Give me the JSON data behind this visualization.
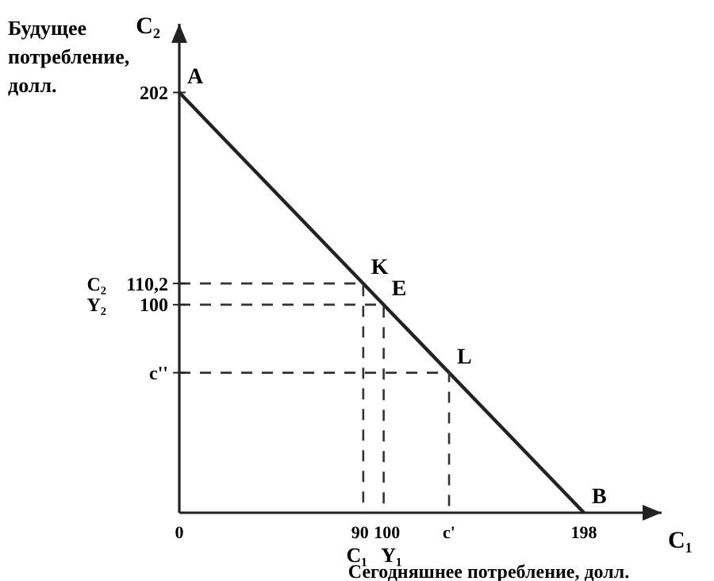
{
  "chart_data": {
    "type": "line",
    "xlabel": "Сегодняшнее потребление, долл.",
    "ylabel": "Будущее потребление, долл.",
    "xlim": [
      0,
      236
    ],
    "ylim": [
      0,
      235
    ],
    "xticks": [
      0,
      90,
      100,
      {
        "value": 132,
        "label": "c'"
      },
      198
    ],
    "yticks": [
      {
        "value": 67.3,
        "label": "c''"
      },
      100,
      {
        "value": 110.2,
        "label": "110,2"
      },
      202
    ],
    "grid": false,
    "series": [
      {
        "color": "#222222",
        "x": [
          0,
          198
        ],
        "values": [
          202,
          0
        ],
        "line_style": "solid"
      },
      {
        "color": "#333333",
        "x": [
          0,
          90,
          90
        ],
        "values": [
          110.2,
          110.2,
          0
        ],
        "line_style": "dashed"
      },
      {
        "color": "#333333",
        "x": [
          0,
          100,
          100
        ],
        "values": [
          100,
          100,
          0
        ],
        "line_style": "dashed"
      },
      {
        "color": "#333333",
        "x": [
          0,
          132,
          132
        ],
        "values": [
          67.3,
          67.3,
          0
        ],
        "line_style": "dashed"
      }
    ],
    "annotations": [
      "C₂",
      "C₁",
      "C₁",
      "Y₁",
      "Y₂",
      "C₂",
      {
        "text": "A",
        "x": 0,
        "y": 202
      },
      {
        "text": "B",
        "x": 198,
        "y": 0
      },
      {
        "text": "K",
        "x": 90,
        "y": 110.2
      },
      {
        "text": "E",
        "x": 100,
        "y": 100
      },
      {
        "text": "L",
        "x": 132,
        "y": 67.3
      }
    ]
  }
}
